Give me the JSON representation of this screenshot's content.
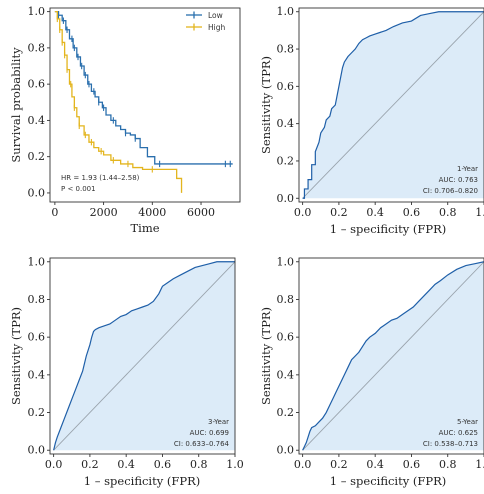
{
  "chart_data": [
    {
      "id": "km",
      "type": "line",
      "title": "",
      "xlabel": "Time",
      "ylabel": "Survival probability",
      "xlim": [
        -200,
        7600
      ],
      "ylim": [
        -0.05,
        1.02
      ],
      "xticks": [
        0,
        2000,
        4000,
        6000
      ],
      "yticks": [
        0.0,
        0.2,
        0.4,
        0.6,
        0.8,
        1.0
      ],
      "xtick_labels": [
        "0",
        "2000",
        "4000",
        "6000"
      ],
      "ytick_labels": [
        "0.0",
        "0.2",
        "0.4",
        "0.6",
        "0.8",
        "1.0"
      ],
      "grid": false,
      "legend_position": "top-right",
      "annotations": [
        "HR = 1.93 (1.44–2.58)",
        "P < 0.001"
      ],
      "series": [
        {
          "name": "Low",
          "color": "#2a6fad",
          "x": [
            0,
            150,
            300,
            450,
            600,
            750,
            900,
            1050,
            1200,
            1350,
            1500,
            1650,
            1800,
            1950,
            2100,
            2300,
            2500,
            2700,
            2900,
            3100,
            3300,
            3500,
            3800,
            4100,
            7300
          ],
          "y": [
            1.0,
            0.98,
            0.95,
            0.9,
            0.85,
            0.8,
            0.75,
            0.7,
            0.65,
            0.6,
            0.56,
            0.53,
            0.5,
            0.47,
            0.43,
            0.4,
            0.37,
            0.35,
            0.33,
            0.32,
            0.3,
            0.25,
            0.2,
            0.16,
            0.16
          ],
          "censor_x": [
            150,
            350,
            500,
            700,
            800,
            950,
            1100,
            1250,
            1400,
            1600,
            1800,
            2000,
            2400,
            2900,
            3300,
            4300,
            7000,
            7200
          ]
        },
        {
          "name": "High",
          "color": "#e3b51e",
          "x": [
            0,
            100,
            200,
            300,
            400,
            500,
            600,
            700,
            800,
            900,
            1000,
            1200,
            1400,
            1600,
            1800,
            2000,
            2300,
            2700,
            3200,
            3600,
            4200,
            5000,
            5200
          ],
          "y": [
            1.0,
            0.96,
            0.9,
            0.83,
            0.76,
            0.68,
            0.6,
            0.53,
            0.47,
            0.42,
            0.37,
            0.32,
            0.28,
            0.25,
            0.23,
            0.21,
            0.18,
            0.16,
            0.14,
            0.13,
            0.13,
            0.08,
            0.0
          ],
          "censor_x": [
            100,
            200,
            300,
            400,
            500,
            650,
            800,
            1000,
            1250,
            1500,
            1900,
            2400,
            3000,
            4000
          ]
        }
      ]
    },
    {
      "id": "roc1",
      "type": "area",
      "title": "",
      "xlabel": "1 – specificity (FPR)",
      "ylabel": "Sensitivity (TPR)",
      "xlim": [
        -0.02,
        1.0
      ],
      "ylim": [
        -0.02,
        1.02
      ],
      "xticks": [
        0.0,
        0.2,
        0.4,
        0.6,
        0.8,
        1.0
      ],
      "yticks": [
        0.0,
        0.2,
        0.4,
        0.6,
        0.8,
        1.0
      ],
      "xtick_labels": [
        "0.0",
        "0.2",
        "0.4",
        "0.6",
        "0.8",
        "1.0"
      ],
      "ytick_labels": [
        "0.0",
        "0.2",
        "0.4",
        "0.6",
        "0.8",
        "1.0"
      ],
      "annotations": [
        "1-Year",
        "AUC: 0.763",
        "CI: 0.706–0.820"
      ],
      "series": [
        {
          "color": "#1f5fa8",
          "fill": "#dcebf8",
          "x": [
            0.0,
            0.01,
            0.01,
            0.03,
            0.03,
            0.05,
            0.05,
            0.07,
            0.07,
            0.09,
            0.1,
            0.12,
            0.13,
            0.15,
            0.16,
            0.18,
            0.19,
            0.2,
            0.21,
            0.22,
            0.23,
            0.25,
            0.27,
            0.29,
            0.31,
            0.33,
            0.35,
            0.37,
            0.4,
            0.43,
            0.46,
            0.5,
            0.55,
            0.6,
            0.65,
            0.7,
            0.75,
            0.8,
            0.85,
            0.9,
            0.95,
            1.0
          ],
          "y": [
            0.0,
            0.0,
            0.05,
            0.05,
            0.1,
            0.1,
            0.18,
            0.18,
            0.25,
            0.3,
            0.35,
            0.38,
            0.42,
            0.44,
            0.48,
            0.5,
            0.55,
            0.6,
            0.65,
            0.7,
            0.73,
            0.76,
            0.78,
            0.8,
            0.83,
            0.85,
            0.86,
            0.87,
            0.88,
            0.89,
            0.9,
            0.92,
            0.94,
            0.95,
            0.98,
            0.99,
            1.0,
            1.0,
            1.0,
            1.0,
            1.0,
            1.0
          ]
        }
      ]
    },
    {
      "id": "roc3",
      "type": "area",
      "title": "",
      "xlabel": "1 – specificity (FPR)",
      "ylabel": "Sensitivity (TPR)",
      "xlim": [
        -0.02,
        1.0
      ],
      "ylim": [
        -0.02,
        1.02
      ],
      "xticks": [
        0.0,
        0.2,
        0.4,
        0.6,
        0.8,
        1.0
      ],
      "yticks": [
        0.0,
        0.2,
        0.4,
        0.6,
        0.8,
        1.0
      ],
      "xtick_labels": [
        "0.0",
        "0.2",
        "0.4",
        "0.6",
        "0.8",
        "1.0"
      ],
      "ytick_labels": [
        "0.0",
        "0.2",
        "0.4",
        "0.6",
        "0.8",
        "1.0"
      ],
      "annotations": [
        "3-Year",
        "AUC: 0.699",
        "CI: 0.633–0.764"
      ],
      "series": [
        {
          "color": "#1f5fa8",
          "fill": "#dcebf8",
          "x": [
            0.0,
            0.01,
            0.02,
            0.04,
            0.06,
            0.08,
            0.1,
            0.12,
            0.14,
            0.16,
            0.18,
            0.2,
            0.21,
            0.22,
            0.23,
            0.25,
            0.28,
            0.31,
            0.34,
            0.37,
            0.4,
            0.43,
            0.46,
            0.49,
            0.52,
            0.55,
            0.58,
            0.6,
            0.63,
            0.66,
            0.7,
            0.74,
            0.78,
            0.82,
            0.86,
            0.9,
            0.95,
            1.0
          ],
          "y": [
            0.0,
            0.04,
            0.07,
            0.12,
            0.17,
            0.22,
            0.27,
            0.32,
            0.37,
            0.42,
            0.5,
            0.56,
            0.6,
            0.63,
            0.64,
            0.65,
            0.66,
            0.67,
            0.69,
            0.71,
            0.72,
            0.74,
            0.75,
            0.76,
            0.77,
            0.79,
            0.83,
            0.87,
            0.89,
            0.91,
            0.93,
            0.95,
            0.97,
            0.98,
            0.99,
            1.0,
            1.0,
            1.0
          ]
        }
      ]
    },
    {
      "id": "roc5",
      "type": "area",
      "title": "",
      "xlabel": "1 – specificity (FPR)",
      "ylabel": "Sensitivity (TPR)",
      "xlim": [
        -0.02,
        1.0
      ],
      "ylim": [
        -0.02,
        1.02
      ],
      "xticks": [
        0.0,
        0.2,
        0.4,
        0.6,
        0.8,
        1.0
      ],
      "yticks": [
        0.0,
        0.2,
        0.4,
        0.6,
        0.8,
        1.0
      ],
      "xtick_labels": [
        "0.0",
        "0.2",
        "0.4",
        "0.6",
        "0.8",
        "1.0"
      ],
      "ytick_labels": [
        "0.0",
        "0.2",
        "0.4",
        "0.6",
        "0.8",
        "1.0"
      ],
      "annotations": [
        "5-Year",
        "AUC: 0.625",
        "CI: 0.538–0.713"
      ],
      "series": [
        {
          "color": "#1f5fa8",
          "fill": "#dcebf8",
          "x": [
            0.0,
            0.01,
            0.02,
            0.03,
            0.04,
            0.05,
            0.07,
            0.09,
            0.11,
            0.13,
            0.15,
            0.17,
            0.19,
            0.21,
            0.23,
            0.25,
            0.27,
            0.29,
            0.31,
            0.33,
            0.35,
            0.37,
            0.4,
            0.43,
            0.46,
            0.49,
            0.52,
            0.55,
            0.58,
            0.61,
            0.64,
            0.67,
            0.7,
            0.73,
            0.76,
            0.8,
            0.85,
            0.9,
            0.95,
            1.0
          ],
          "y": [
            0.0,
            0.02,
            0.04,
            0.07,
            0.1,
            0.12,
            0.13,
            0.15,
            0.17,
            0.2,
            0.24,
            0.28,
            0.32,
            0.36,
            0.4,
            0.44,
            0.48,
            0.5,
            0.52,
            0.55,
            0.58,
            0.6,
            0.62,
            0.65,
            0.67,
            0.69,
            0.7,
            0.72,
            0.74,
            0.76,
            0.79,
            0.82,
            0.85,
            0.88,
            0.9,
            0.93,
            0.96,
            0.98,
            0.99,
            1.0
          ]
        }
      ]
    }
  ]
}
